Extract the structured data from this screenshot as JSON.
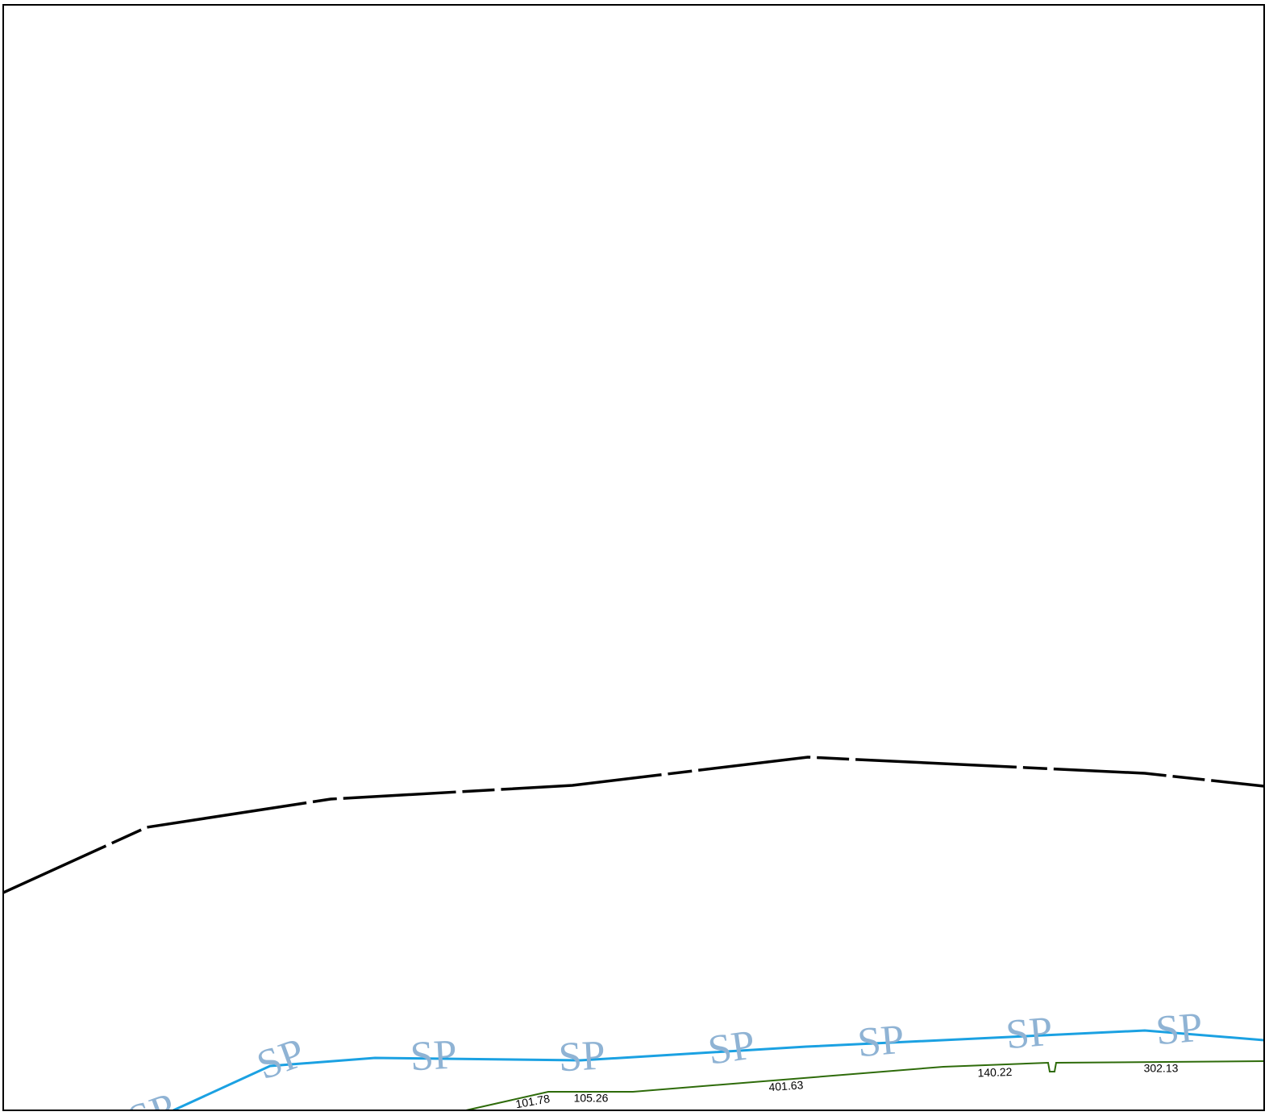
{
  "marker_text": "SP",
  "segment_labels": [
    "101.78",
    "105.26",
    "401.63",
    "140.22",
    "302.13"
  ]
}
